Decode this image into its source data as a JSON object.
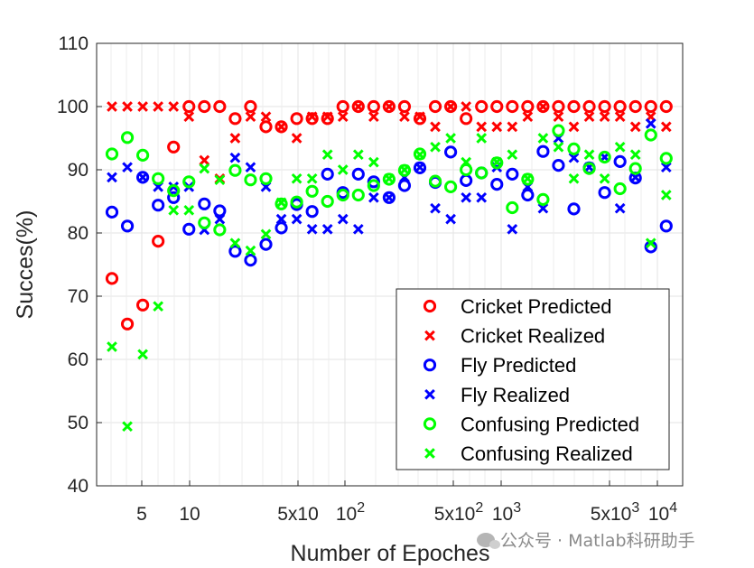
{
  "chart_data": {
    "type": "scatter",
    "title": "",
    "xlabel": "Number of Epoches",
    "ylabel": "Succes(%)",
    "x_scale": "log",
    "ylim": [
      40,
      110
    ],
    "yticks": [
      "40",
      "50",
      "60",
      "70",
      "80",
      "90",
      "100",
      "110"
    ],
    "xticks": [
      {
        "base": "5",
        "exp": ""
      },
      {
        "base": "10",
        "exp": ""
      },
      {
        "base": "5x10",
        "exp": ""
      },
      {
        "base": "10",
        "exp": "2"
      },
      {
        "base": "5x10",
        "exp": "2"
      },
      {
        "base": "10",
        "exp": "3"
      },
      {
        "base": "5x10",
        "exp": "3"
      },
      {
        "base": "10",
        "exp": "4"
      }
    ],
    "grid": true,
    "legend_position": "bottom-right",
    "series": [
      {
        "name": "Cricket Predicted",
        "marker": "o",
        "color": "#ff0000",
        "values": [
          72.8,
          65.6,
          68.6,
          78.7,
          93.6,
          100,
          100,
          100,
          98.1,
          100,
          96.8,
          96.8,
          98.1,
          98.1,
          98.1,
          100,
          100,
          100,
          100,
          100,
          98.1,
          100,
          100,
          98.1,
          100,
          100,
          100,
          100,
          100,
          100,
          100,
          100,
          100,
          100,
          100,
          100,
          100
        ]
      },
      {
        "name": "Cricket Realized",
        "marker": "x",
        "color": "#ff0000",
        "values": [
          100,
          100,
          100,
          100,
          100,
          98.4,
          91.5,
          88.6,
          95,
          98.4,
          98.4,
          96.8,
          95,
          98.4,
          98.4,
          98.4,
          100,
          98.4,
          100,
          98.4,
          98.4,
          96.8,
          100,
          100,
          96.8,
          96.8,
          96.8,
          98.4,
          100,
          98.4,
          96.8,
          98.4,
          98.4,
          98.4,
          96.8,
          98.4,
          96.8
        ]
      },
      {
        "name": "Fly Predicted",
        "marker": "o",
        "color": "#0000ff",
        "values": [
          83.3,
          81.1,
          88.8,
          84.4,
          85.6,
          80.6,
          84.6,
          83.5,
          77.1,
          75.7,
          78.2,
          80.8,
          84.5,
          83.4,
          89.3,
          86.4,
          89.3,
          88.1,
          85.6,
          87.5,
          90.3,
          88,
          92.8,
          88.3,
          89.5,
          87.7,
          89.3,
          86,
          92.9,
          90.7,
          83.8,
          90.3,
          86.4,
          91.3,
          88.7,
          77.8,
          81.1
        ]
      },
      {
        "name": "Fly Realized",
        "marker": "x",
        "color": "#0000ff",
        "values": [
          88.8,
          90.4,
          88.8,
          87.3,
          87.3,
          87.3,
          80.5,
          82.2,
          91.9,
          90.4,
          87.3,
          82.2,
          82.2,
          80.6,
          80.6,
          82.2,
          80.6,
          85.6,
          85.6,
          88.8,
          90.4,
          83.9,
          82.2,
          85.6,
          85.6,
          90.4,
          80.6,
          87.3,
          83.9,
          95,
          91.9,
          90.4,
          92,
          83.9,
          88.8,
          97.3,
          90.4
        ]
      },
      {
        "name": "Confusing Predicted",
        "marker": "o",
        "color": "#00ff00",
        "values": [
          92.5,
          95.1,
          92.3,
          88.6,
          86.7,
          88.1,
          81.6,
          80.5,
          89.9,
          88.4,
          88.6,
          84.6,
          84.9,
          86.6,
          85,
          86,
          86,
          87.5,
          88.5,
          89.9,
          92.5,
          88.2,
          87.3,
          90,
          89.5,
          91.1,
          84,
          88.5,
          85.3,
          96.2,
          93.3,
          90.2,
          92,
          87,
          90.2,
          95.5,
          91.8
        ]
      },
      {
        "name": "Confusing Realized",
        "marker": "x",
        "color": "#00ff00",
        "values": [
          62,
          49.4,
          60.8,
          68.4,
          83.6,
          83.6,
          90.2,
          88.4,
          78.4,
          77.2,
          79.8,
          84.8,
          88.6,
          88.6,
          92.4,
          90,
          92.4,
          91.2,
          88.6,
          90,
          92.4,
          93.6,
          95,
          91.2,
          95,
          91.2,
          92.4,
          88.6,
          95,
          93.6,
          88.6,
          92.4,
          88.6,
          93.6,
          92.4,
          78.4,
          86
        ]
      }
    ]
  }
}
